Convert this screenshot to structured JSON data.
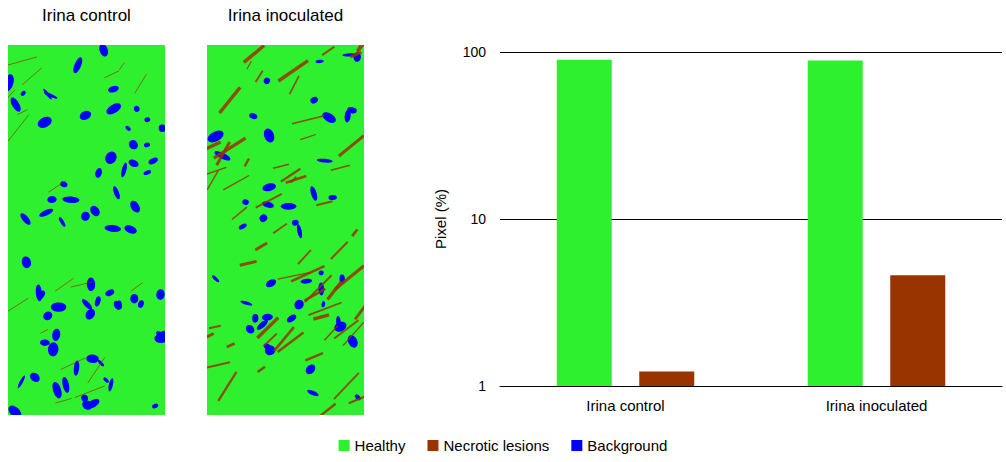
{
  "panels": [
    {
      "title": "Irina control"
    },
    {
      "title": "Irina inoculated"
    }
  ],
  "chart_data": {
    "type": "bar",
    "categories": [
      "Irina control",
      "Irina inoculated"
    ],
    "y_label": "Pixel (%)",
    "series": [
      {
        "name": "Healthy",
        "color": "#2ef02e",
        "values": [
          90,
          89
        ]
      },
      {
        "name": "Necrotic lesions",
        "color": "#993300",
        "values": [
          1.22,
          4.6
        ]
      },
      {
        "name": "Background",
        "color": "#0000ff",
        "values": [
          null,
          null
        ]
      }
    ],
    "log": "y",
    "ylim": [
      1,
      100
    ],
    "yticks": [
      1,
      10,
      100
    ],
    "grid": true,
    "legend": "bottom"
  }
}
